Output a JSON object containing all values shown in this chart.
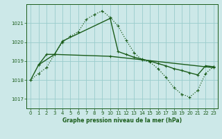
{
  "background_color": "#cce8e8",
  "grid_color": "#99cccc",
  "line_color": "#1a5c1a",
  "title": "Graphe pression niveau de la mer (hPa)",
  "xlim": [
    -0.5,
    23.5
  ],
  "ylim": [
    1016.5,
    1022.0
  ],
  "yticks": [
    1017,
    1018,
    1019,
    1020,
    1021
  ],
  "xticks": [
    0,
    1,
    2,
    3,
    4,
    5,
    6,
    7,
    8,
    9,
    10,
    11,
    12,
    13,
    14,
    15,
    16,
    17,
    18,
    19,
    20,
    21,
    22,
    23
  ],
  "line1_x": [
    0,
    1,
    2,
    3,
    4,
    5,
    6,
    7,
    8,
    9,
    10,
    11,
    12,
    13,
    14,
    15,
    16,
    17,
    18,
    19,
    20,
    21,
    22,
    23
  ],
  "line1_y": [
    1018.0,
    1018.35,
    1018.65,
    1019.35,
    1020.0,
    1020.3,
    1020.55,
    1021.2,
    1021.45,
    1021.65,
    1021.3,
    1020.85,
    1020.1,
    1019.45,
    1019.05,
    1018.95,
    1018.6,
    1018.15,
    1017.6,
    1017.25,
    1017.1,
    1017.45,
    1018.35,
    1018.7
  ],
  "line2_x": [
    0,
    1,
    2,
    3,
    4,
    10,
    11,
    12,
    13,
    14,
    15,
    16,
    17,
    18,
    19,
    20,
    21,
    22,
    23
  ],
  "line2_y": [
    1018.0,
    1018.8,
    1019.35,
    1019.35,
    1020.05,
    1021.25,
    1019.5,
    1019.35,
    1019.2,
    1019.1,
    1019.0,
    1018.87,
    1018.75,
    1018.6,
    1018.5,
    1018.38,
    1018.27,
    1018.75,
    1018.7
  ],
  "line3_x": [
    1,
    3,
    10,
    23
  ],
  "line3_y": [
    1018.8,
    1019.35,
    1019.25,
    1018.65
  ]
}
